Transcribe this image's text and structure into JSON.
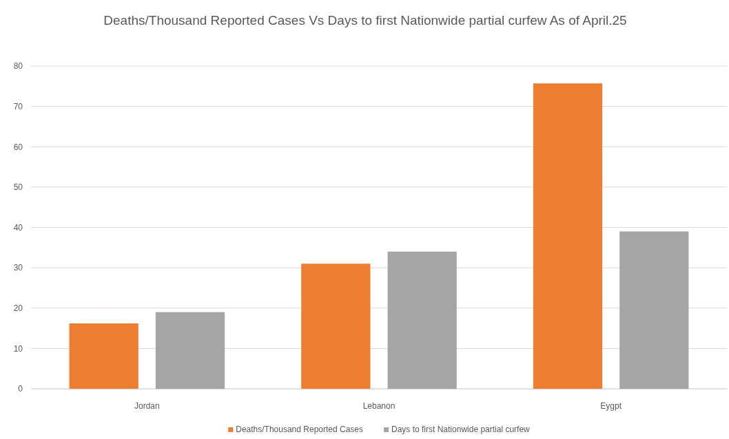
{
  "chart_data": {
    "type": "bar",
    "title": "Deaths/Thousand Reported Cases Vs Days to first Nationwide partial curfew As of April.25",
    "categories": [
      "Jordan",
      "Lebanon",
      "Eygpt"
    ],
    "series": [
      {
        "name": "Deaths/Thousand Reported Cases",
        "color": "#ed7d31",
        "values": [
          16.2,
          31,
          75.7
        ]
      },
      {
        "name": "Days to first Nationwide partial curfew",
        "color": "#a5a5a5",
        "values": [
          19,
          34,
          39
        ]
      }
    ],
    "ylim": [
      0,
      80
    ],
    "yticks": [
      0,
      10,
      20,
      30,
      40,
      50,
      60,
      70,
      80
    ],
    "grid": "y",
    "legend": "bottom"
  }
}
